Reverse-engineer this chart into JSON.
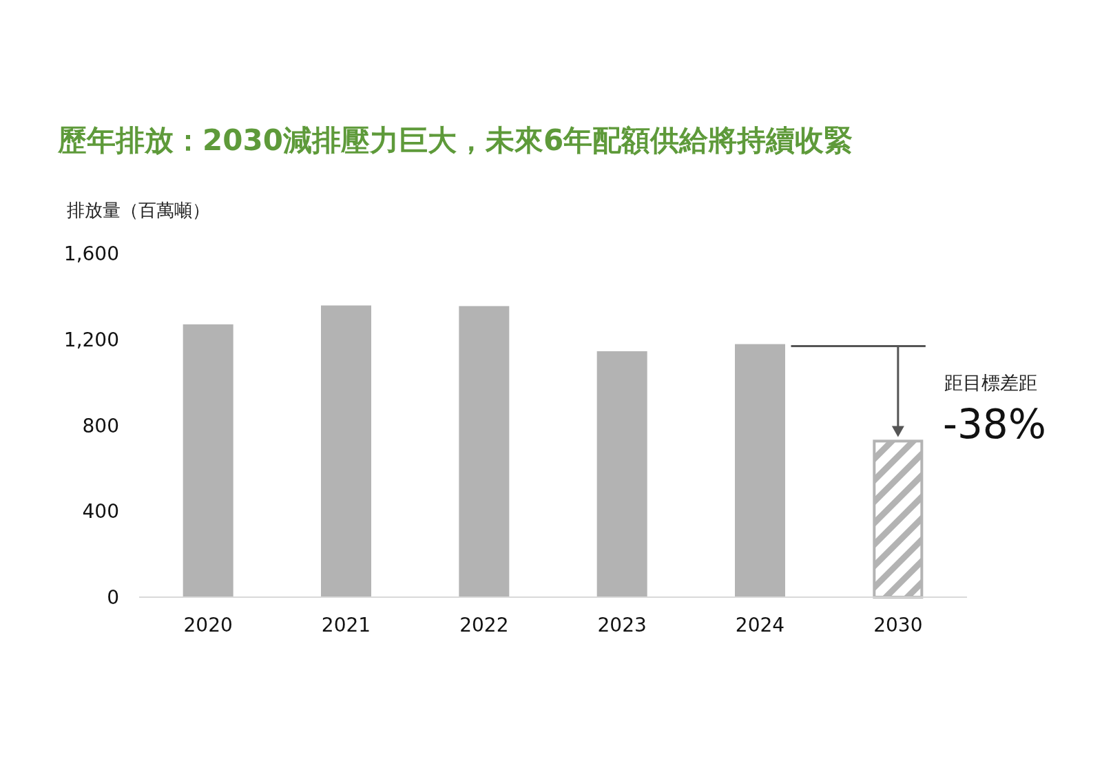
{
  "chart_data": {
    "type": "bar",
    "title": "歷年排放：2030減排壓力巨大，未來6年配額供給將持續收緊",
    "ylabel": "排放量（百萬噸）",
    "categories": [
      "2020",
      "2021",
      "2022",
      "2023",
      "2024",
      "2030"
    ],
    "series": [
      {
        "color": "#b3b3b3",
        "values": [
          1270,
          1358,
          1355,
          1145,
          1178,
          null
        ]
      },
      {
        "color": "#b3b3b3",
        "values": [
          null,
          null,
          null,
          null,
          null,
          733
        ]
      }
    ],
    "ylim": [
      0,
      1600
    ],
    "yticks": [
      0,
      400,
      800,
      {
        "value": 1200,
        "label": "1,200"
      },
      {
        "value": 1600,
        "label": "1,600"
      }
    ],
    "grid": false,
    "annotations": [
      "距目標差距",
      "-38%"
    ]
  }
}
